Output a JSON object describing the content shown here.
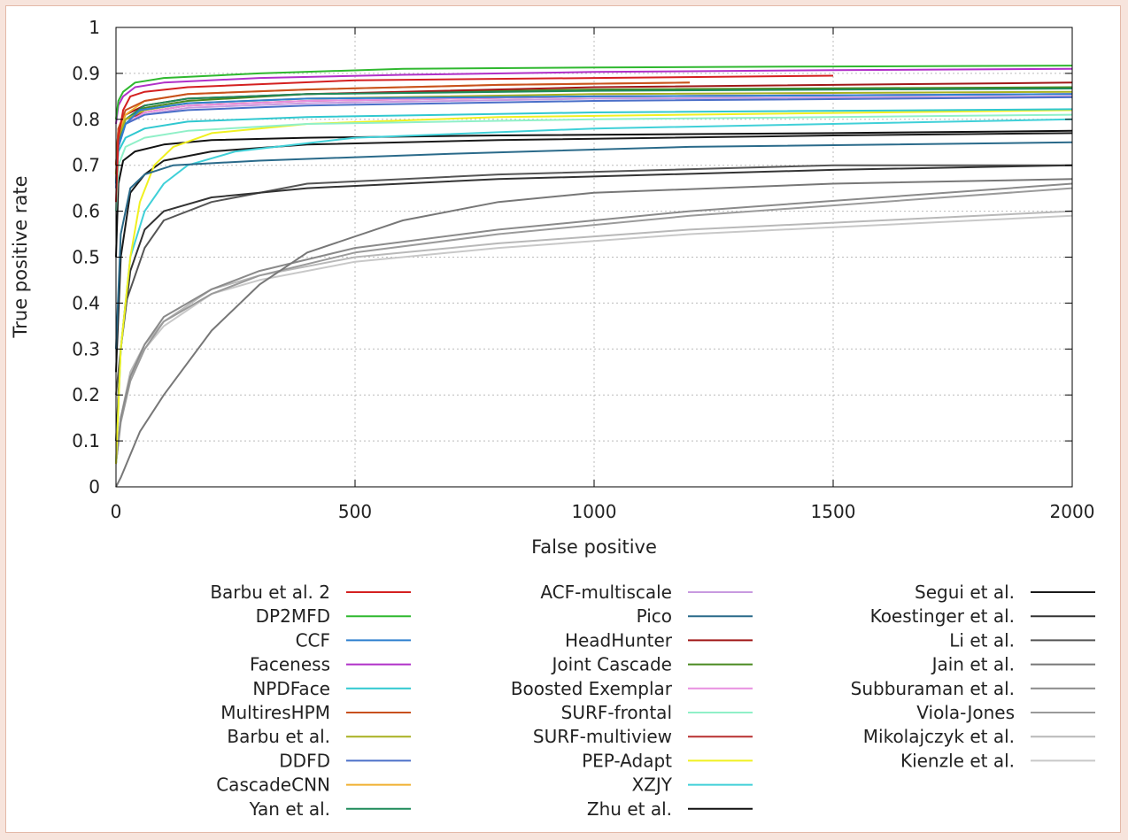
{
  "chart_data": {
    "type": "line",
    "xlabel": "False positive",
    "ylabel": "True positive rate",
    "xlim": [
      0,
      2000
    ],
    "ylim": [
      0,
      1
    ],
    "xticks": [
      "0",
      "500",
      "1000",
      "1500",
      "2000"
    ],
    "yticks": [
      "0",
      "0.1",
      "0.2",
      "0.3",
      "0.4",
      "0.5",
      "0.6",
      "0.7",
      "0.8",
      "0.9",
      "1"
    ],
    "grid": true,
    "legend_position": "bottom",
    "series": [
      {
        "name": "Barbu et al. 2",
        "color": "#d42020",
        "x": [
          0,
          5,
          15,
          30,
          60,
          150,
          500,
          1000,
          1500
        ],
        "y": [
          0.62,
          0.76,
          0.82,
          0.85,
          0.86,
          0.87,
          0.885,
          0.89,
          0.895
        ]
      },
      {
        "name": "DP2MFD",
        "color": "#2fb82f",
        "x": [
          0,
          5,
          15,
          40,
          100,
          300,
          600,
          1000,
          1500,
          2000
        ],
        "y": [
          0.8,
          0.84,
          0.86,
          0.88,
          0.89,
          0.9,
          0.91,
          0.913,
          0.915,
          0.917
        ]
      },
      {
        "name": "CCF",
        "color": "#2e7fcf",
        "x": [
          0,
          5,
          20,
          50,
          150,
          400,
          1000,
          1500,
          2000
        ],
        "y": [
          0.66,
          0.74,
          0.79,
          0.82,
          0.835,
          0.845,
          0.85,
          0.852,
          0.855
        ]
      },
      {
        "name": "Faceness",
        "color": "#b030c8",
        "x": [
          0,
          5,
          15,
          40,
          100,
          300,
          600,
          1000,
          1500,
          2000
        ],
        "y": [
          0.79,
          0.83,
          0.85,
          0.87,
          0.88,
          0.89,
          0.897,
          0.903,
          0.907,
          0.91
        ]
      },
      {
        "name": "NPDFace",
        "color": "#30c8d0",
        "x": [
          0,
          5,
          20,
          60,
          150,
          400,
          1000,
          2000
        ],
        "y": [
          0.66,
          0.73,
          0.76,
          0.78,
          0.795,
          0.805,
          0.815,
          0.822
        ]
      },
      {
        "name": "MultiresHPM",
        "color": "#c8501e",
        "x": [
          0,
          5,
          20,
          60,
          150,
          400,
          800,
          1200
        ],
        "y": [
          0.7,
          0.78,
          0.82,
          0.84,
          0.855,
          0.865,
          0.875,
          0.88
        ]
      },
      {
        "name": "Barbu et al.",
        "color": "#a8b020",
        "x": [
          0,
          5,
          20,
          60,
          150,
          400,
          1000,
          2000
        ],
        "y": [
          0.68,
          0.76,
          0.8,
          0.82,
          0.835,
          0.845,
          0.855,
          0.86
        ]
      },
      {
        "name": "DDFD",
        "color": "#4a6fc8",
        "x": [
          0,
          5,
          20,
          60,
          150,
          400,
          1000,
          2000
        ],
        "y": [
          0.65,
          0.74,
          0.79,
          0.81,
          0.82,
          0.83,
          0.84,
          0.848
        ]
      },
      {
        "name": "CascadeCNN",
        "color": "#f0b030",
        "x": [
          0,
          5,
          20,
          60,
          150,
          400,
          800,
          1200
        ],
        "y": [
          0.7,
          0.77,
          0.81,
          0.84,
          0.855,
          0.865,
          0.875,
          0.88
        ]
      },
      {
        "name": "Yan et al.",
        "color": "#1e8a5a",
        "x": [
          0,
          5,
          20,
          60,
          150,
          400,
          1000,
          2000
        ],
        "y": [
          0.66,
          0.75,
          0.8,
          0.83,
          0.845,
          0.855,
          0.862,
          0.867
        ]
      },
      {
        "name": "ACF-multiscale",
        "color": "#c89ae0",
        "x": [
          0,
          5,
          20,
          60,
          150,
          400,
          1000,
          2000
        ],
        "y": [
          0.67,
          0.75,
          0.79,
          0.81,
          0.825,
          0.835,
          0.845,
          0.85
        ]
      },
      {
        "name": "Pico",
        "color": "#2a6a8a",
        "x": [
          0,
          10,
          30,
          60,
          120,
          300,
          700,
          1200,
          2000
        ],
        "y": [
          0.3,
          0.55,
          0.65,
          0.68,
          0.7,
          0.71,
          0.725,
          0.74,
          0.75
        ]
      },
      {
        "name": "HeadHunter",
        "color": "#a01818",
        "x": [
          0,
          5,
          20,
          60,
          150,
          400,
          1000,
          2000
        ],
        "y": [
          0.7,
          0.78,
          0.81,
          0.83,
          0.845,
          0.855,
          0.87,
          0.88
        ]
      },
      {
        "name": "Joint Cascade",
        "color": "#4a8a20",
        "x": [
          0,
          5,
          20,
          60,
          150,
          400,
          1000,
          2000
        ],
        "y": [
          0.67,
          0.76,
          0.8,
          0.825,
          0.84,
          0.855,
          0.865,
          0.87
        ]
      },
      {
        "name": "Boosted Exemplar",
        "color": "#e890e0",
        "x": [
          0,
          5,
          20,
          60,
          150,
          400,
          1000,
          2000
        ],
        "y": [
          0.66,
          0.74,
          0.79,
          0.815,
          0.83,
          0.84,
          0.85,
          0.855
        ]
      },
      {
        "name": "SURF-frontal",
        "color": "#90f0c8",
        "x": [
          0,
          5,
          20,
          60,
          150,
          400,
          1000,
          2000
        ],
        "y": [
          0.6,
          0.7,
          0.74,
          0.76,
          0.775,
          0.79,
          0.8,
          0.81
        ]
      },
      {
        "name": "SURF-multiview",
        "color": "#b83030",
        "x": [
          0,
          5,
          20,
          60,
          150,
          400,
          1000,
          2000
        ],
        "y": [
          0.68,
          0.76,
          0.8,
          0.815,
          0.83,
          0.84,
          0.85,
          0.855
        ]
      },
      {
        "name": "PEP-Adapt",
        "color": "#f0f020",
        "x": [
          0,
          10,
          30,
          50,
          80,
          120,
          200,
          400,
          800,
          2000
        ],
        "y": [
          0.05,
          0.3,
          0.5,
          0.62,
          0.7,
          0.74,
          0.77,
          0.79,
          0.805,
          0.82
        ]
      },
      {
        "name": "XZJY",
        "color": "#40d0d8",
        "x": [
          0,
          10,
          30,
          60,
          100,
          150,
          250,
          500,
          1000,
          2000
        ],
        "y": [
          0.05,
          0.3,
          0.5,
          0.6,
          0.66,
          0.7,
          0.73,
          0.76,
          0.78,
          0.8
        ]
      },
      {
        "name": "Zhu et al.",
        "color": "#111111",
        "x": [
          0,
          5,
          15,
          40,
          100,
          200,
          400,
          800,
          1500,
          2000
        ],
        "y": [
          0.5,
          0.66,
          0.71,
          0.73,
          0.745,
          0.755,
          0.76,
          0.765,
          0.77,
          0.775
        ]
      },
      {
        "name": "Segui et al.",
        "color": "#1a1a1a",
        "x": [
          0,
          10,
          30,
          60,
          100,
          200,
          400,
          800,
          1500,
          2000
        ],
        "y": [
          0.25,
          0.5,
          0.64,
          0.68,
          0.71,
          0.73,
          0.745,
          0.755,
          0.765,
          0.77
        ]
      },
      {
        "name": "Koestinger et al.",
        "color": "#333333",
        "x": [
          0,
          10,
          30,
          60,
          100,
          200,
          400,
          800,
          1500,
          2000
        ],
        "y": [
          0.1,
          0.3,
          0.47,
          0.56,
          0.6,
          0.63,
          0.65,
          0.67,
          0.69,
          0.7
        ]
      },
      {
        "name": "Li et al.",
        "color": "#555555",
        "x": [
          0,
          20,
          60,
          100,
          200,
          400,
          800,
          1500,
          2000
        ],
        "y": [
          0.2,
          0.4,
          0.52,
          0.58,
          0.62,
          0.66,
          0.68,
          0.7,
          0.7
        ]
      },
      {
        "name": "Jain et al.",
        "color": "#777777",
        "x": [
          0,
          10,
          50,
          100,
          200,
          300,
          400,
          600,
          800,
          1000,
          1500,
          2000
        ],
        "y": [
          0.0,
          0.02,
          0.12,
          0.2,
          0.34,
          0.44,
          0.51,
          0.58,
          0.62,
          0.64,
          0.66,
          0.67
        ]
      },
      {
        "name": "Subburaman et al.",
        "color": "#8a8a8a",
        "x": [
          0,
          10,
          30,
          60,
          100,
          200,
          300,
          500,
          800,
          1200,
          2000
        ],
        "y": [
          0.05,
          0.15,
          0.24,
          0.31,
          0.37,
          0.43,
          0.47,
          0.52,
          0.56,
          0.6,
          0.66
        ]
      },
      {
        "name": "Viola-Jones",
        "color": "#9a9a9a",
        "x": [
          0,
          10,
          30,
          60,
          100,
          200,
          300,
          500,
          800,
          1200,
          2000
        ],
        "y": [
          0.05,
          0.14,
          0.23,
          0.3,
          0.36,
          0.42,
          0.46,
          0.51,
          0.55,
          0.59,
          0.65
        ]
      },
      {
        "name": "Mikolajczyk et al.",
        "color": "#b8b8b8",
        "x": [
          0,
          10,
          30,
          60,
          100,
          200,
          300,
          500,
          800,
          1200,
          2000
        ],
        "y": [
          0.05,
          0.15,
          0.25,
          0.31,
          0.36,
          0.43,
          0.46,
          0.5,
          0.53,
          0.56,
          0.6
        ]
      },
      {
        "name": "Kienzle et al.",
        "color": "#c8c8c8",
        "x": [
          0,
          10,
          30,
          60,
          100,
          200,
          300,
          500,
          800,
          1200,
          2000
        ],
        "y": [
          0.05,
          0.15,
          0.24,
          0.3,
          0.35,
          0.42,
          0.45,
          0.49,
          0.52,
          0.55,
          0.59
        ]
      }
    ]
  }
}
